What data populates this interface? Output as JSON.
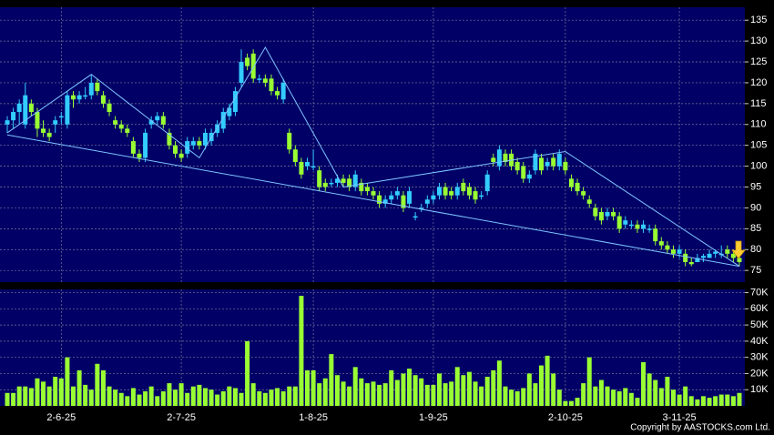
{
  "chart_data": [
    {
      "type": "candlestick",
      "categories": [
        null,
        null,
        null,
        null,
        null,
        null,
        null,
        null,
        null,
        "2-6-25",
        null,
        null,
        null,
        null,
        null,
        null,
        null,
        null,
        null,
        null,
        null,
        null,
        null,
        null,
        null,
        null,
        null,
        null,
        null,
        "2-7-25",
        null,
        null,
        null,
        null,
        null,
        null,
        null,
        null,
        null,
        null,
        null,
        null,
        null,
        null,
        null,
        null,
        null,
        null,
        null,
        null,
        null,
        "1-8-25",
        null,
        null,
        null,
        null,
        null,
        null,
        null,
        null,
        null,
        null,
        null,
        null,
        null,
        null,
        null,
        null,
        null,
        null,
        null,
        "1-9-25",
        null,
        null,
        null,
        null,
        null,
        null,
        null,
        null,
        null,
        null,
        null,
        null,
        null,
        null,
        null,
        null,
        null,
        null,
        null,
        null,
        null,
        "2-10-25",
        null,
        null,
        null,
        null,
        null,
        null,
        null,
        null,
        null,
        null,
        null,
        null,
        null,
        null,
        null,
        null,
        null,
        null,
        "3-11-25",
        null,
        null,
        null,
        null,
        null,
        null,
        null,
        null,
        null,
        null
      ],
      "open": [
        110,
        111,
        113,
        110,
        115,
        113,
        109,
        108,
        110,
        112,
        110,
        117,
        116,
        117,
        117,
        120,
        117,
        115,
        111,
        110,
        109,
        106,
        103,
        102,
        110,
        111,
        112,
        108,
        105,
        103,
        103,
        105,
        106,
        105,
        106,
        108,
        109,
        112,
        113,
        120,
        126,
        127,
        121,
        121,
        121,
        118,
        116,
        108,
        104,
        101,
        100,
        100,
        99,
        96,
        96,
        96,
        97,
        97,
        95,
        96,
        95,
        94,
        93,
        91,
        92,
        93,
        93,
        91,
        88,
        90,
        91,
        92,
        93,
        95,
        94,
        93,
        96,
        95,
        94,
        93,
        94,
        102,
        100,
        103,
        103,
        101,
        100,
        97,
        99,
        102,
        100,
        102,
        100,
        101,
        97,
        96,
        94,
        92,
        90,
        89,
        88,
        89,
        88,
        86,
        86,
        86,
        85,
        85,
        85,
        82,
        81,
        80,
        79,
        79,
        77,
        77,
        78,
        78,
        79,
        79,
        80,
        79,
        78
      ],
      "high": [
        112,
        114,
        116,
        120,
        116,
        114,
        111,
        109,
        112,
        113,
        118,
        118,
        118,
        119,
        122,
        121,
        118,
        116,
        112,
        111,
        110,
        107,
        104,
        109,
        112,
        113,
        113,
        109,
        106,
        104,
        107,
        107,
        107,
        109,
        109,
        111,
        114,
        115,
        119,
        128,
        127,
        128,
        122,
        122,
        122,
        119,
        121,
        109,
        105,
        102,
        102,
        104,
        100,
        97,
        97,
        98,
        98,
        98,
        99,
        97,
        96,
        95,
        94,
        93,
        94,
        95,
        94,
        95,
        89,
        91,
        93,
        94,
        96,
        96,
        95,
        96,
        97,
        96,
        95,
        94,
        99,
        103,
        105,
        104,
        104,
        102,
        101,
        99,
        104,
        103,
        102,
        103,
        104,
        102,
        98,
        97,
        95,
        93,
        91,
        90,
        90,
        90,
        89,
        88,
        87,
        87,
        87,
        86,
        86,
        83,
        82,
        81,
        81,
        80,
        78,
        79,
        79,
        80,
        80,
        81,
        81,
        80,
        79
      ],
      "low": [
        108,
        109,
        110,
        109,
        112,
        107,
        107,
        106,
        108,
        110,
        109,
        114,
        115,
        116,
        116,
        117,
        114,
        112,
        109,
        108,
        107,
        102,
        101,
        101,
        109,
        110,
        109,
        104,
        102,
        101,
        102,
        104,
        104,
        104,
        105,
        107,
        108,
        111,
        112,
        119,
        123,
        120,
        120,
        119,
        117,
        116,
        115,
        103,
        100,
        97,
        99,
        99,
        94,
        94,
        95,
        95,
        95,
        94,
        94,
        93,
        93,
        92,
        90,
        90,
        91,
        92,
        89,
        90,
        87,
        89,
        90,
        91,
        92,
        92,
        92,
        92,
        93,
        92,
        91,
        92,
        93,
        100,
        99,
        100,
        99,
        98,
        96,
        96,
        98,
        98,
        99,
        99,
        99,
        98,
        94,
        93,
        92,
        90,
        87,
        86,
        87,
        87,
        84,
        85,
        85,
        84,
        84,
        84,
        81,
        80,
        79,
        78,
        78,
        76,
        76,
        77,
        77,
        78,
        78,
        78,
        78,
        77,
        76
      ],
      "close": [
        111,
        113,
        115,
        117,
        113,
        109,
        108,
        107,
        111,
        112,
        117,
        116,
        117,
        117,
        120,
        118,
        115,
        113,
        110,
        109,
        108,
        103,
        102,
        108,
        111,
        112,
        110,
        105,
        103,
        102,
        106,
        106,
        105,
        108,
        108,
        110,
        113,
        114,
        118,
        125,
        124,
        121,
        121,
        120,
        118,
        117,
        120,
        104,
        101,
        98,
        101,
        100,
        95,
        95,
        96,
        97,
        96,
        95,
        98,
        94,
        94,
        93,
        91,
        92,
        93,
        94,
        90,
        94,
        88,
        90,
        92,
        93,
        95,
        93,
        93,
        95,
        94,
        93,
        92,
        93,
        98,
        101,
        104,
        101,
        100,
        99,
        97,
        98,
        103,
        99,
        101,
        100,
        103,
        99,
        95,
        94,
        93,
        91,
        88,
        87,
        89,
        88,
        85,
        87,
        86,
        85,
        86,
        85,
        82,
        81,
        80,
        79,
        80,
        77,
        76.5,
        78,
        78.5,
        79,
        79.5,
        79,
        79,
        78,
        77
      ],
      "up_color": "#33ccff",
      "down_color": "#99ff33",
      "ylim": [
        72.2,
        138.1
      ],
      "yticks": [
        75,
        80,
        85,
        90,
        95,
        100,
        105,
        110,
        115,
        120,
        125,
        130,
        135
      ],
      "grid": true,
      "trendlines": [
        {
          "color": "#7ec3ff",
          "x": [
            0,
            14,
            32,
            43,
            56,
            93,
            122
          ],
          "y": [
            108,
            122,
            102,
            128.5,
            95,
            103.5,
            76
          ]
        },
        {
          "color": "#7ec3ff",
          "x": [
            0,
            122
          ],
          "y": [
            107.5,
            76
          ]
        }
      ]
    },
    {
      "type": "bar",
      "values": [
        8000,
        8000,
        12000,
        12000,
        11000,
        17000,
        15000,
        12000,
        18000,
        17000,
        30000,
        12000,
        22000,
        13000,
        10000,
        26000,
        22000,
        12000,
        10000,
        8000,
        6000,
        11000,
        7000,
        9000,
        12000,
        6000,
        9000,
        14000,
        10000,
        14000,
        8000,
        12000,
        13000,
        11000,
        10000,
        7000,
        9000,
        12000,
        11000,
        8000,
        40000,
        14000,
        9000,
        8000,
        10000,
        11000,
        9000,
        12000,
        12000,
        68000,
        22000,
        22000,
        14000,
        17000,
        32000,
        19000,
        15000,
        12000,
        24000,
        17000,
        14000,
        15000,
        13000,
        14000,
        22000,
        16000,
        20000,
        23000,
        19000,
        17000,
        13000,
        13000,
        20000,
        14000,
        15000,
        24000,
        19000,
        21000,
        15000,
        12000,
        18000,
        22000,
        28000,
        12000,
        10000,
        9000,
        11000,
        20000,
        14000,
        25000,
        31000,
        20000,
        10000,
        3000,
        3000,
        5000,
        14000,
        30000,
        12000,
        16000,
        12000,
        10000,
        9000,
        11000,
        8000,
        5000,
        27000,
        20000,
        16000,
        11000,
        18000,
        10000,
        7000,
        12000,
        6000,
        4000,
        6000,
        5000,
        6000,
        7000,
        7000,
        6000,
        8000
      ],
      "color": "#99ff33",
      "ylim": [
        0,
        72000
      ],
      "yticks": [
        {
          "value": 10000,
          "label": "10K"
        },
        {
          "value": 20000,
          "label": "20K"
        },
        {
          "value": 30000,
          "label": "30K"
        },
        {
          "value": 40000,
          "label": "40K"
        },
        {
          "value": 50000,
          "label": "50K"
        },
        {
          "value": 60000,
          "label": "60K"
        },
        {
          "value": 70000,
          "label": "70K"
        }
      ],
      "grid": true
    }
  ],
  "copyright": "Copyright by AASTOCKS.com Ltd."
}
